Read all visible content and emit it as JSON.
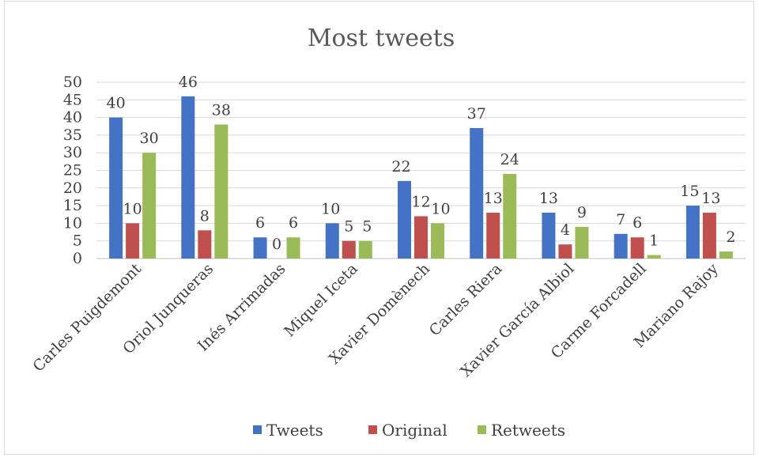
{
  "chart_data": {
    "type": "bar",
    "title": "Most tweets",
    "categories": [
      "Carles Puigdemont",
      "Oriol Junqueras",
      "Inés Arrimadas",
      "Miquel Iceta",
      "Xavier Domènech",
      "Carles Riera",
      "Xavier García Albiol",
      "Carme Forcadell",
      "Mariano Rajoy"
    ],
    "series": [
      {
        "name": "Tweets",
        "color": "#4472c4",
        "values": [
          40,
          46,
          6,
          10,
          22,
          37,
          13,
          7,
          15
        ]
      },
      {
        "name": "Original",
        "color": "#c0504d",
        "values": [
          10,
          8,
          0,
          5,
          12,
          13,
          4,
          6,
          13
        ]
      },
      {
        "name": "Retweets",
        "color": "#9bbb59",
        "values": [
          30,
          38,
          6,
          5,
          10,
          24,
          9,
          1,
          2
        ]
      }
    ],
    "ylim": [
      0,
      50
    ],
    "yticks": [
      0,
      5,
      10,
      15,
      20,
      25,
      30,
      35,
      40,
      45,
      50
    ],
    "grid": true,
    "legend_position": "bottom",
    "data_labels": true
  }
}
